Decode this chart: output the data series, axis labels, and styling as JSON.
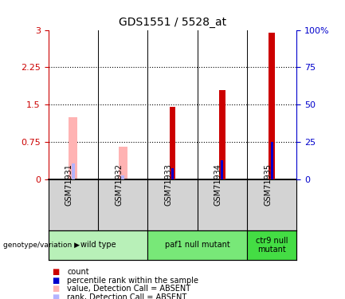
{
  "title": "GDS1551 / 5528_at",
  "samples": [
    "GSM71931",
    "GSM71932",
    "GSM71933",
    "GSM71934",
    "GSM71935"
  ],
  "count_values": [
    0.0,
    0.0,
    1.45,
    1.8,
    2.95
  ],
  "rank_values": [
    0.0,
    0.0,
    0.22,
    0.38,
    0.75
  ],
  "absent_value_values": [
    1.25,
    0.65,
    0.0,
    0.0,
    0.0
  ],
  "absent_rank_values": [
    0.32,
    0.08,
    0.0,
    0.0,
    0.0
  ],
  "ylim": [
    0,
    3.0
  ],
  "yticks": [
    0,
    0.75,
    1.5,
    2.25,
    3.0
  ],
  "ytick_labels_left": [
    "0",
    "0.75",
    "1.5",
    "2.25",
    "3"
  ],
  "ytick_labels_right": [
    "0",
    "25",
    "50",
    "75",
    "100%"
  ],
  "groups": [
    {
      "label": "wild type",
      "samples": [
        "GSM71931",
        "GSM71932"
      ],
      "color": "#b8f0b8"
    },
    {
      "label": "paf1 null mutant",
      "samples": [
        "GSM71933",
        "GSM71934"
      ],
      "color": "#78e878"
    },
    {
      "label": "ctr9 null\nmutant",
      "samples": [
        "GSM71935"
      ],
      "color": "#44dd44"
    }
  ],
  "legend_items": [
    {
      "label": "count",
      "color": "#cc0000"
    },
    {
      "label": "percentile rank within the sample",
      "color": "#0000cc"
    },
    {
      "label": "value, Detection Call = ABSENT",
      "color": "#ffb3b3"
    },
    {
      "label": "rank, Detection Call = ABSENT",
      "color": "#b3b3ff"
    }
  ],
  "count_color": "#cc0000",
  "rank_color": "#0000cc",
  "absent_val_color": "#ffb3b3",
  "absent_rank_color": "#b3b3ff",
  "left_label_color": "#cc0000",
  "right_label_color": "#0000cc",
  "sample_bg": "#d3d3d3",
  "plot_bg": "#ffffff"
}
